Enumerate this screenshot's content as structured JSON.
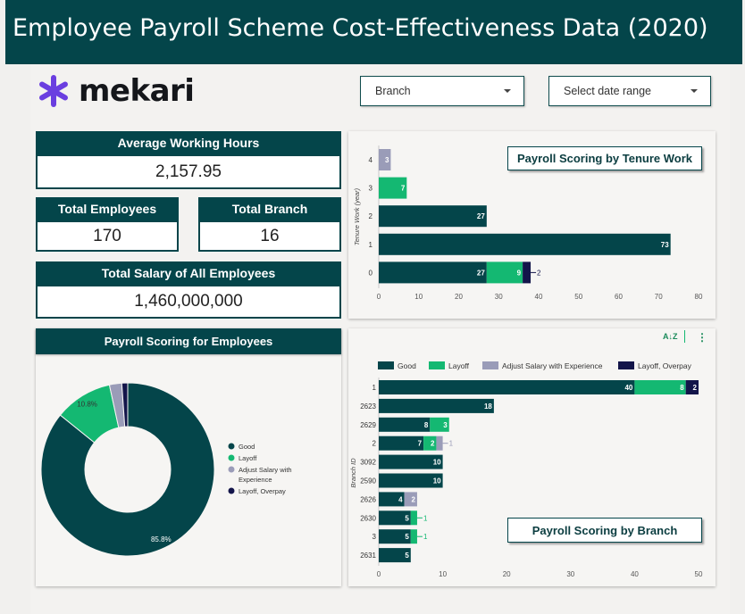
{
  "header": {
    "title": "Employee Payroll Scheme Cost-Effectiveness Data (2020)"
  },
  "logo": {
    "text": "mekari"
  },
  "filters": {
    "branch_label": "Branch",
    "date_label": "Select date range"
  },
  "kpis": {
    "avg_hours": {
      "label": "Average Working Hours",
      "value": "2,157.95"
    },
    "employees": {
      "label": "Total Employees",
      "value": "170"
    },
    "branch": {
      "label": "Total Branch",
      "value": "16"
    },
    "salary": {
      "label": "Total Salary of All Employees",
      "value": "1,460,000,000"
    }
  },
  "colors": {
    "Good": "#04454a",
    "Layoff": "#14b872",
    "Adjust Salary with Experience": "#9a9cb8",
    "Layoff, Overpay": "#13154a"
  },
  "chart_data": [
    {
      "type": "bar",
      "orientation": "horizontal",
      "stacked": true,
      "title": "Payroll Scoring by Tenure Work",
      "ylabel": "Tenure Work (year)",
      "xlabel": "",
      "xlim": [
        0,
        80
      ],
      "x_ticks": [
        0,
        10,
        20,
        30,
        40,
        50,
        60,
        70,
        80
      ],
      "categories": [
        "4",
        "3",
        "2",
        "1",
        "0"
      ],
      "series": [
        {
          "name": "Good",
          "values": [
            0,
            0,
            27,
            73,
            27
          ]
        },
        {
          "name": "Layoff",
          "values": [
            0,
            7,
            0,
            0,
            9
          ]
        },
        {
          "name": "Adjust Salary with Experience",
          "values": [
            3,
            0,
            0,
            0,
            0
          ]
        },
        {
          "name": "Layoff, Overpay",
          "values": [
            0,
            0,
            0,
            0,
            2
          ]
        }
      ],
      "legend": "none"
    },
    {
      "type": "pie",
      "donut": true,
      "title": "Payroll Scoring for Employees",
      "labels": [
        "Good",
        "Layoff",
        "Adjust Salary with Experience",
        "Layoff, Overpay"
      ],
      "values": [
        85.8,
        10.8,
        2.3,
        1.1
      ],
      "slice_labels": [
        "85.8%",
        "10.8%",
        "",
        ""
      ],
      "legend": "right"
    },
    {
      "type": "bar",
      "orientation": "horizontal",
      "stacked": true,
      "title": "Payroll Scoring by Branch",
      "ylabel": "Branch ID",
      "xlabel": "",
      "xlim": [
        0,
        50
      ],
      "x_ticks": [
        0,
        10,
        20,
        30,
        40,
        50
      ],
      "categories": [
        "1",
        "2623",
        "2629",
        "2",
        "3092",
        "2590",
        "2626",
        "2630",
        "3",
        "2631"
      ],
      "series": [
        {
          "name": "Good",
          "values": [
            40,
            18,
            8,
            7,
            10,
            10,
            4,
            5,
            5,
            5
          ]
        },
        {
          "name": "Layoff",
          "values": [
            8,
            0,
            3,
            2,
            0,
            0,
            0,
            1,
            1,
            0
          ]
        },
        {
          "name": "Adjust Salary with Experience",
          "values": [
            0,
            0,
            0,
            1,
            0,
            0,
            2,
            0,
            0,
            0
          ]
        },
        {
          "name": "Layoff, Overpay",
          "values": [
            2,
            0,
            0,
            0,
            0,
            0,
            0,
            0,
            0,
            0
          ]
        }
      ],
      "legend": "top"
    }
  ],
  "toolbar": {
    "sort_icon_label": "A↓Z",
    "menu_icon_label": "⋮"
  }
}
